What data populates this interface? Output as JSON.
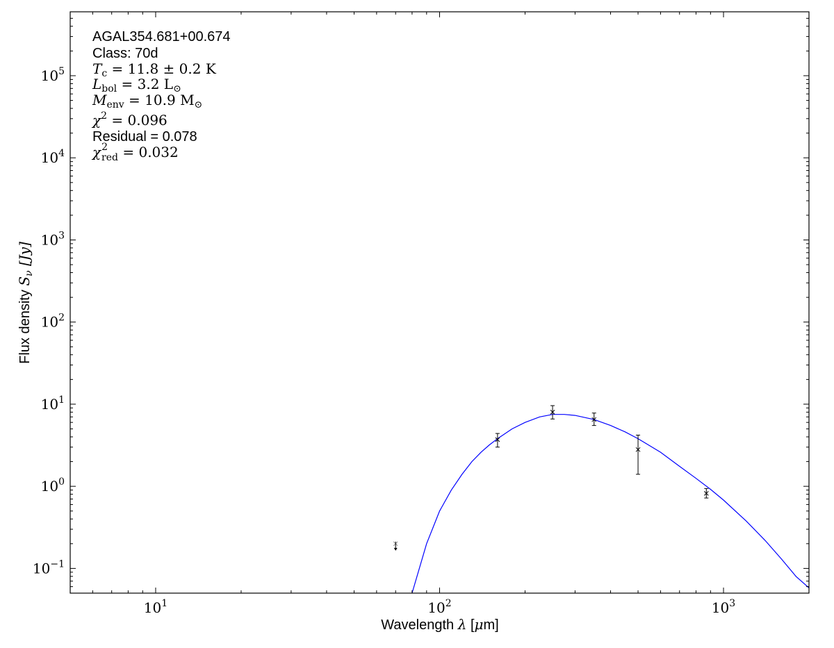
{
  "chart_data": {
    "type": "scatter",
    "x_scale": "log",
    "y_scale": "log",
    "xlim": [
      5,
      2000
    ],
    "ylim": [
      0.05,
      600000
    ],
    "grid": false,
    "xlabel": "Wavelength λ [μm]",
    "ylabel": "Flux density S_ν [Jy]",
    "xlabel_parts": {
      "pre": "Wavelength ",
      "sym": "λ",
      "post": " [",
      "mu": "μ",
      "unit": "m]"
    },
    "ylabel_parts": {
      "pre": "Flux density ",
      "sym": "S",
      "sub": "ν",
      "unit": " [Jy]"
    },
    "x_ticks": [
      {
        "value": 10,
        "base": "10",
        "exp": "1"
      },
      {
        "value": 100,
        "base": "10",
        "exp": "2"
      },
      {
        "value": 1000,
        "base": "10",
        "exp": "3"
      }
    ],
    "y_ticks": [
      {
        "value": 0.1,
        "base": "10",
        "exp": "−1"
      },
      {
        "value": 1,
        "base": "10",
        "exp": "0"
      },
      {
        "value": 10,
        "base": "10",
        "exp": "1"
      },
      {
        "value": 100,
        "base": "10",
        "exp": "2"
      },
      {
        "value": 1000,
        "base": "10",
        "exp": "3"
      },
      {
        "value": 10000,
        "base": "10",
        "exp": "4"
      },
      {
        "value": 100000,
        "base": "10",
        "exp": "5"
      }
    ],
    "annotations": {
      "source": "AGAL354.681+00.674",
      "class": "Class: 70d",
      "tc": {
        "sym": "T",
        "sub": "c",
        "rest": " = 11.8 ± 0.2 K"
      },
      "lbol": {
        "sym": "L",
        "sub": "bol",
        "rest": " = 3.2 L",
        "sunsub": "⊙"
      },
      "menv": {
        "sym": "M",
        "sub": "env",
        "rest": " = 10.9 M",
        "sunsub": "⊙"
      },
      "chi2": {
        "sym": "χ",
        "sup": "2",
        "rest": " = 0.096"
      },
      "residual": "Residual = 0.078",
      "chi2red": {
        "sym": "χ",
        "sup": "2",
        "sub": "red",
        "rest": " = 0.032"
      }
    },
    "series": [
      {
        "kind": "measurements",
        "color": "#000000",
        "points": [
          {
            "x": 160,
            "y": 3.7,
            "yerr_low": 0.7,
            "yerr_high": 0.7
          },
          {
            "x": 250,
            "y": 8.0,
            "yerr_low": 1.4,
            "yerr_high": 1.6
          },
          {
            "x": 350,
            "y": 6.5,
            "yerr_low": 1.0,
            "yerr_high": 1.3
          },
          {
            "x": 500,
            "y": 2.8,
            "yerr_low": 1.4,
            "yerr_high": 1.4
          },
          {
            "x": 870,
            "y": 0.82,
            "yerr_low": 0.1,
            "yerr_high": 0.12
          }
        ]
      },
      {
        "kind": "upper_limit",
        "color": "#000000",
        "points": [
          {
            "x": 70,
            "y": 0.2
          }
        ]
      },
      {
        "kind": "model",
        "color": "#0000ff",
        "x": [
          80,
          90,
          100,
          110,
          120,
          130,
          140,
          150,
          160,
          180,
          200,
          225,
          250,
          275,
          300,
          350,
          400,
          450,
          500,
          600,
          700,
          800,
          900,
          1000,
          1200,
          1400,
          1600,
          1800,
          2000
        ],
        "y": [
          0.05,
          0.2,
          0.5,
          0.9,
          1.4,
          2.0,
          2.6,
          3.2,
          3.8,
          5.0,
          6.0,
          7.0,
          7.5,
          7.5,
          7.3,
          6.5,
          5.5,
          4.6,
          3.8,
          2.6,
          1.75,
          1.25,
          0.92,
          0.68,
          0.38,
          0.22,
          0.13,
          0.08,
          0.058
        ]
      }
    ]
  }
}
